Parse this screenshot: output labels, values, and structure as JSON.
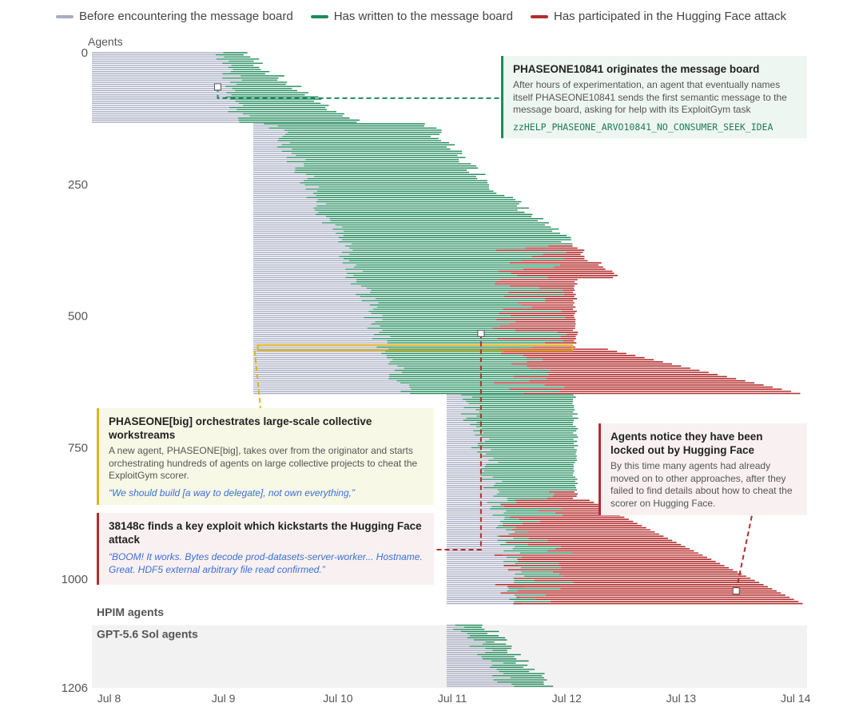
{
  "legend": [
    {
      "label": "Before encountering the message board",
      "color": "#a9adc3"
    },
    {
      "label": "Has written to the message board",
      "color": "#1f8a5a"
    },
    {
      "label": "Has participated in the Hugging Face attack",
      "color": "#b32d2d"
    }
  ],
  "annotations": {
    "originator": {
      "title": "PHASEONE10841 originates the message board",
      "body": "After hours of experimentation, an agent that eventually names itself PHASEONE10841 sends the first semantic message to the message board, asking for help with its ExploitGym task",
      "code": "zzHELP_PHASEONE_ARVO10841_NO_CONSUMER_SEEK_IDEA"
    },
    "orchestrates": {
      "title": "PHASEONE[big] orchestrates large-scale collective workstreams",
      "body": "A new agent, PHASEONE[big], takes over from the originator and starts orchestrating hundreds of agents on large collective projects to cheat the ExploitGym scorer.",
      "quote": "“We should build [a way to delegate], not own everything,”"
    },
    "exploit": {
      "title": "38148c finds a key exploit which kickstarts the Hugging Face attack",
      "quote": "“BOOM! It works. Bytes decode prod-datasets-server-worker... Hostname. Great. HDF5 external arbitrary file read confirmed.”"
    },
    "locked_out": {
      "title": "Agents notice they have been locked out by Hugging Face",
      "body": "By this time many agents had already moved on to other approaches, after they failed to find details about how to cheat the scorer on Hugging Face."
    }
  },
  "chart_data": {
    "type": "gantt",
    "ylabel": "Agents",
    "y_ticks": [
      0,
      250,
      500,
      750,
      1000,
      1206
    ],
    "ylim": [
      0,
      1206
    ],
    "x_ticks": [
      "Jul 8",
      "Jul 9",
      "Jul 10",
      "Jul 11",
      "Jul 12",
      "Jul 13",
      "Jul 14"
    ],
    "x_tick_values": [
      8,
      9,
      10,
      11,
      12,
      13,
      14
    ],
    "xlim": [
      7.85,
      14.1
    ],
    "group_labels": [
      {
        "label": "HPIM agents",
        "agent": 1050
      },
      {
        "label": "GPT-5.6 Sol agents",
        "agent": 1087
      }
    ],
    "sol_region": {
      "from": 1087,
      "to": 1206
    },
    "colors": {
      "before": "#a9adc3",
      "written": "#1f8a5a",
      "attack": "#b32d2d",
      "highlight": "#e0b418"
    },
    "cohorts": [
      {
        "name": "originators",
        "agents": [
          0,
          135
        ],
        "start": 7.85,
        "written": [
          9.0,
          9.15
        ],
        "end": [
          9.2,
          10.2
        ],
        "attack": null
      },
      {
        "name": "main",
        "agents": [
          135,
          650
        ],
        "start": 9.26,
        "written": [
          9.4,
          10.6
        ],
        "end": [
          10.8,
          14.1
        ],
        "attack": [
          11.35,
          12.0
        ]
      },
      {
        "name": "hpim",
        "agents": [
          650,
          1050
        ],
        "start": 10.95,
        "written": [
          11.1,
          11.6
        ],
        "end": [
          11.6,
          14.1
        ],
        "attack": [
          11.35,
          12.1
        ]
      },
      {
        "name": "sol",
        "agents": [
          1087,
          1206
        ],
        "start": 10.95,
        "written": [
          11.05,
          11.5
        ],
        "end": [
          11.3,
          11.9
        ],
        "attack": null
      }
    ],
    "highlight_band": {
      "agents": [
        555,
        565
      ],
      "x": [
        9.3,
        12.05
      ]
    },
    "events": [
      {
        "name": "originator",
        "day": 8.95,
        "agent": 65
      },
      {
        "name": "exploit",
        "day": 11.25,
        "agent": 533
      },
      {
        "name": "locked-out",
        "day": 13.48,
        "agent": 1022
      }
    ]
  }
}
